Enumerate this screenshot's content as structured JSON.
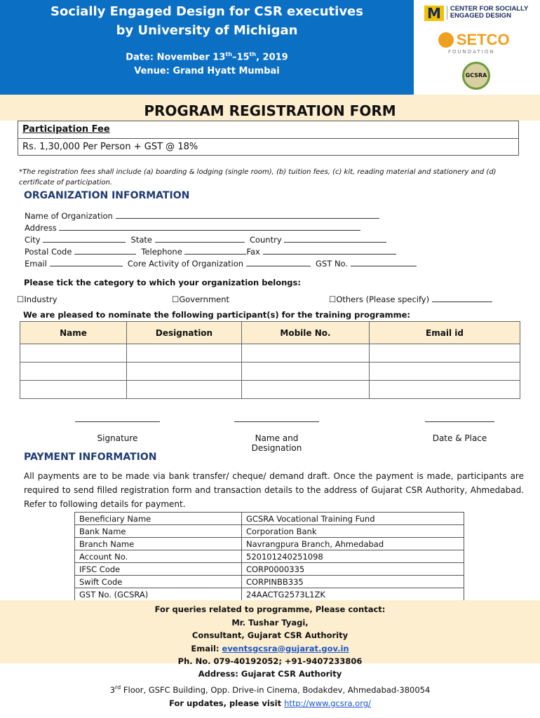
{
  "header": {
    "title_line1": "Socially Engaged Design for CSR executives",
    "title_line2": "by University of Michigan",
    "date_label": "Date:  November 13",
    "date_sup1": "th",
    "date_mid": "–15",
    "date_sup2": "th",
    "date_end": ", 2019",
    "venue": "Venue: Grand Hyatt Mumbai"
  },
  "logos": {
    "umich_text_1": "CENTER FOR SOCIALLY",
    "umich_text_2": "ENGAGED DESIGN",
    "setco": "SETCO",
    "setco_sub": "FOUNDATION",
    "gcsra": "GCSRA",
    "colors": {
      "umich": "#f2c200",
      "setco": "#f0a020",
      "gcsra": "#6b9a3a"
    }
  },
  "form_title": "PROGRAM REGISTRATION FORM",
  "fee": {
    "label": "Participation Fee",
    "value": "Rs. 1,30,000 Per Person + GST @ 18%"
  },
  "note": "*The registration fees shall include (a) boarding & lodging (single room), (b) tuition fees, (c) kit, reading material and stationery and (d) certificate of participation.",
  "org": {
    "heading": "ORGANIZATION INFORMATION",
    "name": "Name of Organization",
    "address": "Address",
    "city": "City",
    "state": "State",
    "country": "Country",
    "postal": "Postal Code",
    "telephone": "Telephone",
    "fax": "Fax",
    "email": "Email",
    "core": "Core Activity of Organization",
    "gst": "GST No."
  },
  "category": {
    "prompt": "Please tick the category to which your organization belongs:",
    "options": [
      "Industry",
      "Government",
      "Others (Please specify)"
    ],
    "checkbox": "☐"
  },
  "nominate": "We are pleased to nominate the following participant(s) for the training programme:",
  "participants": {
    "columns": [
      "Name",
      "Designation",
      "Mobile No.",
      "Email id"
    ]
  },
  "signatures": [
    "Signature",
    "Name and Designation",
    "Date & Place"
  ],
  "payment": {
    "heading": "PAYMENT INFORMATION",
    "text": "All payments are to be made via bank transfer/ cheque/ demand draft. Once the payment is made, participants are required to send filled registration form and transaction details to the address of Gujarat CSR Authority, Ahmedabad. Refer to following details for payment.",
    "rows": [
      [
        "Beneficiary Name",
        "GCSRA Vocational Training Fund"
      ],
      [
        "Bank Name",
        "Corporation Bank"
      ],
      [
        "Branch Name",
        "Navrangpura Branch, Ahmedabad"
      ],
      [
        "Account No.",
        "520101240251098"
      ],
      [
        "IFSC Code",
        "CORP0000335"
      ],
      [
        "Swift Code",
        "CORPINBB335"
      ],
      [
        "GST No. (GCSRA)",
        "24AACTG2573L1ZK"
      ]
    ]
  },
  "contact": {
    "l1": "For queries related to programme, Please contact:",
    "l2": "Mr. Tushar Tyagi,",
    "l3": "Consultant, Gujarat CSR Authority",
    "email_label": "Email: ",
    "email": "eventsgcsra@gujarat.gov.in",
    "phone": "Ph. No. 079-40192052; +91-9407233806"
  },
  "address": {
    "l1": "Address: Gujarat CSR Authority",
    "floor": "3",
    "floor_sup": "rd",
    "l2": " Floor, GSFC Building, Opp. Drive-in Cinema, Bodakdev, Ahmedabad-380054",
    "updates": "For updates, please visit ",
    "url": "http://www.gcsra.org/"
  }
}
